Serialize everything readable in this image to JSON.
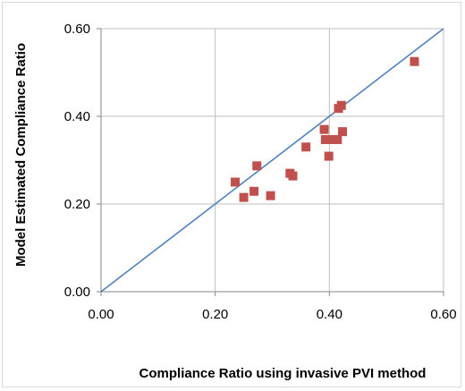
{
  "chart_data": {
    "type": "scatter",
    "title": "",
    "xlabel": "Compliance Ratio using invasive PVI method",
    "ylabel": "Model Estimated Compliance Ratio",
    "xlim": [
      0,
      0.6
    ],
    "ylim": [
      0,
      0.6
    ],
    "xticks": [
      "0.00",
      "0.20",
      "0.40",
      "0.60"
    ],
    "yticks": [
      "0.00",
      "0.20",
      "0.40",
      "0.60"
    ],
    "grid": true,
    "legend": "none",
    "marker_color": "#c0504d",
    "line_color": "#4f81bd",
    "identity_line": {
      "x": [
        0,
        0.6
      ],
      "y": [
        0,
        0.6
      ]
    },
    "points": [
      {
        "x": 0.235,
        "y": 0.25
      },
      {
        "x": 0.25,
        "y": 0.215
      },
      {
        "x": 0.268,
        "y": 0.229
      },
      {
        "x": 0.273,
        "y": 0.287
      },
      {
        "x": 0.297,
        "y": 0.219
      },
      {
        "x": 0.331,
        "y": 0.27
      },
      {
        "x": 0.336,
        "y": 0.264
      },
      {
        "x": 0.359,
        "y": 0.33
      },
      {
        "x": 0.391,
        "y": 0.37
      },
      {
        "x": 0.393,
        "y": 0.347
      },
      {
        "x": 0.399,
        "y": 0.309
      },
      {
        "x": 0.404,
        "y": 0.347
      },
      {
        "x": 0.414,
        "y": 0.347
      },
      {
        "x": 0.416,
        "y": 0.418
      },
      {
        "x": 0.421,
        "y": 0.425
      },
      {
        "x": 0.423,
        "y": 0.365
      },
      {
        "x": 0.549,
        "y": 0.525
      }
    ]
  }
}
